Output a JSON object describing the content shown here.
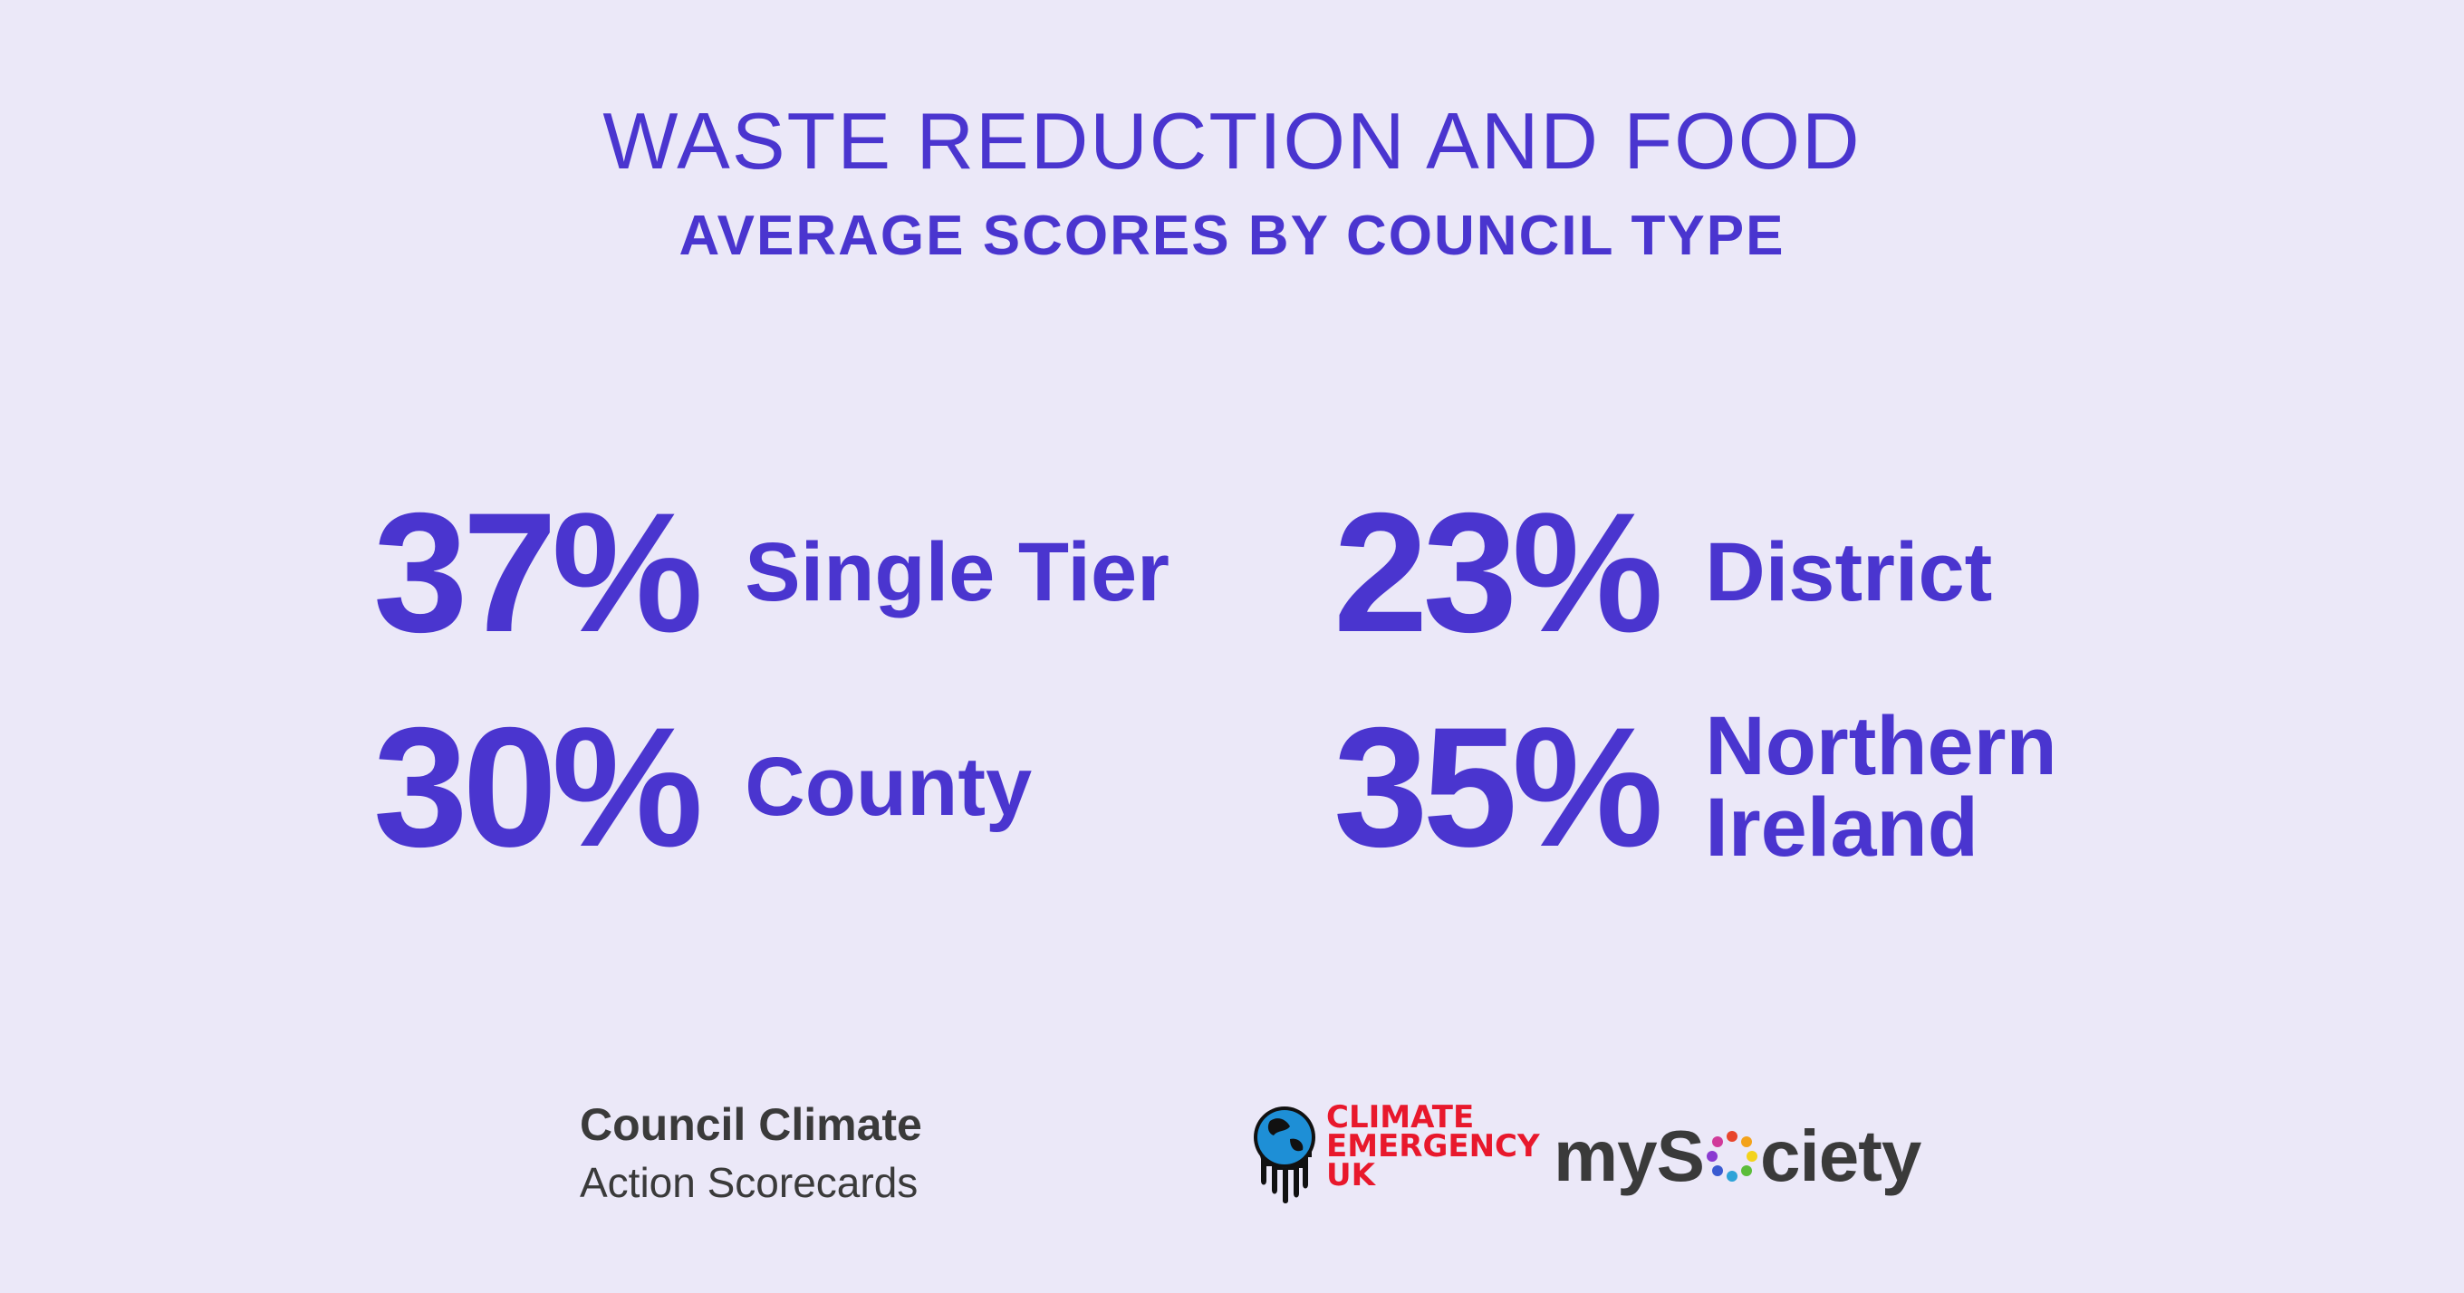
{
  "header": {
    "title": "WASTE REDUCTION AND FOOD",
    "subtitle": "AVERAGE SCORES BY COUNCIL TYPE"
  },
  "stats": [
    {
      "value": "37%",
      "label": "Single Tier"
    },
    {
      "value": "23%",
      "label": "District"
    },
    {
      "value": "30%",
      "label": "County"
    },
    {
      "value": "35%",
      "label": "Northern\nIreland"
    }
  ],
  "footer": {
    "brand_line1": "Council Climate",
    "brand_line2": "Action Scorecards",
    "ceuk_logo": {
      "line1": "CLIMATE",
      "line2": "EMERGENCY",
      "line3": "UK",
      "color": "#e8182c",
      "icon": "melting-globe-icon"
    },
    "mysociety_logo": {
      "prefix": "myS",
      "suffix": "ciety",
      "icon": "colored-dots-ring-icon"
    }
  },
  "colors": {
    "background": "#ebe8f8",
    "accent": "#4a35cf",
    "text_dark": "#3a3a3a"
  }
}
